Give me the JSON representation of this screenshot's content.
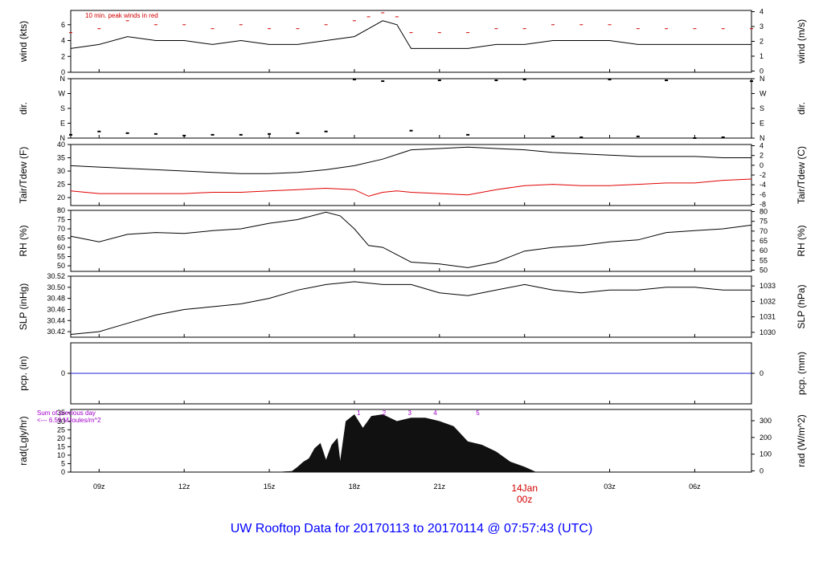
{
  "footer": "UW Rooftop Data for 20170113  to  20170114 @ 07:57:43  (UTC)",
  "x_axis": {
    "ticks": [
      "09z",
      "12z",
      "15z",
      "18z",
      "21z",
      "00z",
      "03z",
      "06z"
    ],
    "tick_hours": [
      9,
      12,
      15,
      18,
      21,
      24,
      27,
      30
    ],
    "date_label": "14Jan",
    "date_hour": 24,
    "range_hours": [
      8,
      32
    ]
  },
  "chart_data": [
    {
      "type": "line",
      "panel": "wind",
      "ylabel_left": "wind (kts)",
      "ylabel_right": "wind (m/s)",
      "left_ticks": [
        "0",
        "2",
        "4",
        "6"
      ],
      "right_ticks": [
        "0",
        "1",
        "2",
        "3",
        "4"
      ],
      "ylim": [
        0,
        7.8
      ],
      "annotation": "10 min. peak winds in red",
      "series": [
        {
          "color": "#000000",
          "x": [
            8,
            9,
            10,
            11,
            12,
            13,
            14,
            15,
            16,
            17,
            18,
            18.5,
            19,
            19.5,
            20,
            21,
            22,
            23,
            24,
            25,
            26,
            27,
            28,
            29,
            30,
            31,
            32
          ],
          "values": [
            3,
            3.5,
            4.5,
            4,
            4,
            3.5,
            4,
            3.5,
            3.5,
            4,
            4.5,
            5.5,
            6.5,
            6,
            3,
            3,
            3,
            3.5,
            3.5,
            4,
            4,
            4,
            3.5,
            3.5,
            3.5,
            3.5,
            3.5
          ]
        },
        {
          "color": "#d00000",
          "x": [
            8,
            9,
            10,
            11,
            12,
            13,
            14,
            15,
            16,
            17,
            18,
            18.5,
            19,
            19.5,
            20,
            21,
            22,
            23,
            24,
            25,
            26,
            27,
            28,
            29,
            30,
            31,
            32
          ],
          "values": [
            5,
            5.5,
            6.5,
            6,
            6,
            5.5,
            6,
            5.5,
            5.5,
            6,
            6.5,
            7,
            7.5,
            7,
            5,
            5,
            5,
            5.5,
            5.5,
            6,
            6,
            6,
            5.5,
            5.5,
            5.5,
            5.5,
            5.5
          ]
        }
      ]
    },
    {
      "type": "scatter",
      "panel": "dir",
      "ylabel_left": "dir.",
      "ylabel_right": "dir.",
      "left_ticks": [
        "N",
        "E",
        "S",
        "W",
        "N"
      ],
      "right_ticks": [
        "N",
        "E",
        "S",
        "W",
        "N"
      ],
      "tick_degrees": [
        0,
        90,
        180,
        270,
        360
      ],
      "ylim": [
        0,
        360
      ],
      "series": [
        {
          "color": "#000000",
          "x": [
            8,
            9,
            10,
            11,
            12,
            13,
            14,
            15,
            16,
            17,
            18,
            19,
            20,
            21,
            22,
            23,
            24,
            25,
            26,
            27,
            28,
            29,
            30,
            31,
            32
          ],
          "values": [
            20,
            40,
            30,
            25,
            15,
            20,
            20,
            25,
            30,
            40,
            355,
            345,
            45,
            350,
            20,
            350,
            355,
            10,
            5,
            355,
            10,
            350,
            0,
            5,
            345
          ]
        }
      ]
    },
    {
      "type": "line",
      "panel": "temperature",
      "ylabel_left": "Tair/Tdew (F)",
      "ylabel_right": "Tair/Tdew (C)",
      "left_ticks": [
        "20",
        "25",
        "30",
        "35",
        "40"
      ],
      "right_ticks": [
        "-8",
        "-6",
        "-4",
        "-2",
        "0",
        "2",
        "4"
      ],
      "ylim": [
        17,
        40
      ],
      "series": [
        {
          "color": "#000000",
          "x": [
            8,
            9,
            10,
            11,
            12,
            13,
            14,
            15,
            16,
            17,
            18,
            19,
            20,
            21,
            22,
            23,
            24,
            25,
            26,
            27,
            28,
            29,
            30,
            31,
            32
          ],
          "values": [
            32,
            31.5,
            31,
            30.5,
            30,
            29.5,
            29,
            29,
            29.5,
            30.5,
            32,
            34.5,
            38,
            38.5,
            39,
            38.5,
            38,
            37,
            36.5,
            36,
            35.5,
            35.5,
            35.5,
            35,
            35
          ]
        },
        {
          "color": "#e00000",
          "x": [
            8,
            9,
            10,
            11,
            12,
            13,
            14,
            15,
            16,
            17,
            18,
            18.5,
            19,
            19.5,
            20,
            21,
            22,
            23,
            24,
            25,
            26,
            27,
            28,
            29,
            30,
            31,
            32
          ],
          "values": [
            22.5,
            21.5,
            21.5,
            21.5,
            21.5,
            22,
            22,
            22.5,
            23,
            23.5,
            23,
            20.5,
            22,
            22.5,
            22,
            21.5,
            21,
            23,
            24.5,
            25,
            24.5,
            24.5,
            25,
            25.5,
            25.5,
            26.5,
            27
          ]
        }
      ]
    },
    {
      "type": "line",
      "panel": "rh",
      "ylabel_left": "RH (%)",
      "ylabel_right": "RH (%)",
      "left_ticks": [
        "50",
        "55",
        "60",
        "65",
        "70",
        "75",
        "80"
      ],
      "right_ticks": [
        "50",
        "55",
        "60",
        "65",
        "70",
        "75",
        "80"
      ],
      "ylim": [
        47,
        80
      ],
      "series": [
        {
          "color": "#000000",
          "x": [
            8,
            9,
            10,
            11,
            12,
            13,
            14,
            15,
            16,
            17,
            17.5,
            18,
            18.5,
            19,
            20,
            21,
            22,
            23,
            24,
            25,
            26,
            27,
            28,
            29,
            30,
            31,
            32
          ],
          "values": [
            66,
            63,
            67,
            68,
            67.5,
            69,
            70,
            73,
            75,
            79,
            77,
            70,
            61,
            60,
            52,
            51,
            49,
            52,
            58,
            60,
            61,
            63,
            64,
            68,
            69,
            70,
            72
          ]
        }
      ]
    },
    {
      "type": "line",
      "panel": "pressure",
      "ylabel_left": "SLP (inHg)",
      "ylabel_right": "SLP (hPa)",
      "left_ticks": [
        "30.42",
        "30.44",
        "30.46",
        "30.48",
        "30.50",
        "30.52"
      ],
      "right_ticks": [
        "1030",
        "1031",
        "1032",
        "1033"
      ],
      "ylim": [
        30.41,
        30.52
      ],
      "series": [
        {
          "color": "#000000",
          "x": [
            8,
            9,
            10,
            11,
            12,
            13,
            14,
            15,
            16,
            17,
            18,
            19,
            20,
            21,
            22,
            23,
            24,
            25,
            26,
            27,
            28,
            29,
            30,
            31,
            32
          ],
          "values": [
            30.415,
            30.42,
            30.435,
            30.45,
            30.46,
            30.465,
            30.47,
            30.48,
            30.495,
            30.505,
            30.51,
            30.505,
            30.505,
            30.49,
            30.485,
            30.495,
            30.505,
            30.495,
            30.49,
            30.495,
            30.495,
            30.5,
            30.5,
            30.495,
            30.495
          ]
        }
      ]
    },
    {
      "type": "line",
      "panel": "precip",
      "ylabel_left": "pcp. (in)",
      "ylabel_right": "pcp. (mm)",
      "left_ticks": [
        "0"
      ],
      "right_ticks": [
        "0"
      ],
      "ylim": [
        -1,
        1
      ],
      "series": [
        {
          "color": "#2222dd",
          "x": [
            8,
            32
          ],
          "values": [
            0,
            0
          ]
        }
      ]
    },
    {
      "type": "area",
      "panel": "radiation",
      "ylabel_left": "rad(Lgly/hr)",
      "ylabel_right": "rad (W/m^2)",
      "left_ticks": [
        "0",
        "5",
        "10",
        "15",
        "20",
        "25",
        "30",
        "35"
      ],
      "right_ticks": [
        "0",
        "100",
        "200",
        "300"
      ],
      "ylim": [
        0,
        37
      ],
      "annotation_lines": [
        "Sum of previous day",
        "<--- 6.59 MJoules/m^2"
      ],
      "peak_labels": [
        "1",
        "2",
        "3",
        "4",
        "5"
      ],
      "peak_label_hours": [
        18.15,
        19.05,
        19.95,
        20.85,
        22.35
      ],
      "series": [
        {
          "color": "#111111",
          "x": [
            15.3,
            15.8,
            16.0,
            16.2,
            16.4,
            16.6,
            16.8,
            17.0,
            17.2,
            17.4,
            17.5,
            17.7,
            18.0,
            18.3,
            18.6,
            19.0,
            19.5,
            20.0,
            20.5,
            21.0,
            21.5,
            22.0,
            22.5,
            23.0,
            23.5,
            24.0,
            24.4
          ],
          "values": [
            0,
            0.5,
            3,
            6,
            8,
            14,
            17,
            7,
            16,
            20,
            6,
            30,
            34,
            26,
            33,
            34,
            30,
            32,
            32,
            30,
            27,
            18,
            16,
            12,
            6,
            3,
            0
          ]
        }
      ]
    }
  ]
}
